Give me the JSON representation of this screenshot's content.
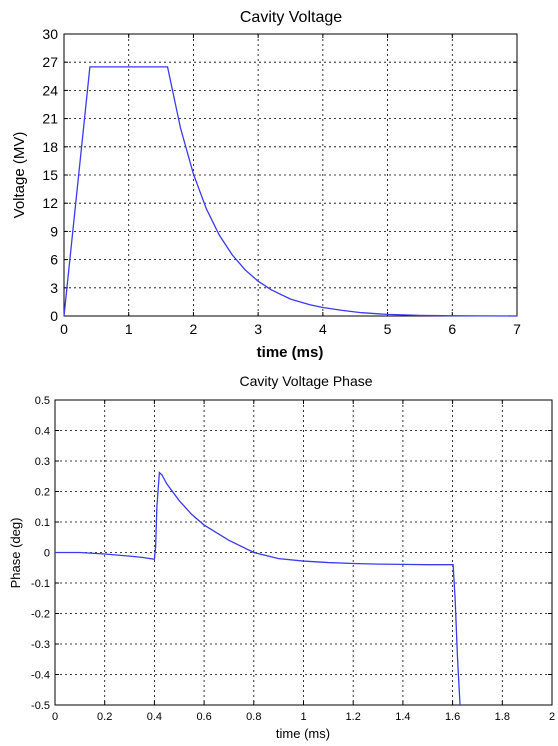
{
  "chart_data": [
    {
      "type": "line",
      "title": "Cavity Voltage",
      "xlabel": "time (ms)",
      "ylabel": "Voltage (MV)",
      "xlim": [
        0,
        7
      ],
      "ylim": [
        0,
        30
      ],
      "xticks": [
        0,
        1,
        2,
        3,
        4,
        5,
        6,
        7
      ],
      "yticks": [
        0,
        3,
        6,
        9,
        12,
        15,
        18,
        21,
        24,
        27,
        30
      ],
      "grid": true,
      "series": [
        {
          "color": "#3a3af0",
          "x": [
            0,
            0.4,
            1.6,
            1.8,
            2.0,
            2.2,
            2.4,
            2.6,
            2.8,
            3.0,
            3.2,
            3.5,
            3.8,
            4.0,
            4.3,
            4.6,
            5.0,
            5.5,
            6.0,
            7.0
          ],
          "y": [
            0,
            26.5,
            26.5,
            20.0,
            15.1,
            11.4,
            8.6,
            6.5,
            4.9,
            3.7,
            2.8,
            1.8,
            1.2,
            0.9,
            0.6,
            0.35,
            0.17,
            0.07,
            0.03,
            0.0
          ]
        }
      ]
    },
    {
      "type": "line",
      "title": "Cavity Voltage Phase",
      "xlabel": "time (ms)",
      "ylabel": "Phase (deg)",
      "xlim": [
        0,
        2
      ],
      "ylim": [
        -0.5,
        0.5
      ],
      "xticks": [
        0,
        0.2,
        0.4,
        0.6,
        0.8,
        1,
        1.2,
        1.4,
        1.6,
        1.8,
        2
      ],
      "yticks": [
        0.5,
        0.4,
        0.3,
        0.2,
        0.1,
        0,
        -0.1,
        -0.2,
        -0.3,
        -0.4,
        -0.5
      ],
      "xtick_labels": [
        "0",
        "0.2",
        "0.4",
        "0.6",
        "0.8",
        "1",
        "1.2",
        "1.4",
        "1.6",
        "1.8",
        "2"
      ],
      "ytick_labels": [
        "0.5",
        "0.4",
        "0.3",
        "0.2",
        "0.1",
        "0",
        "-0.1",
        "-0.2",
        "-0.3",
        "-0.4",
        "-0.5"
      ],
      "grid": true,
      "series": [
        {
          "color": "#3a3af0",
          "x": [
            0,
            0.1,
            0.2,
            0.3,
            0.35,
            0.4,
            0.405,
            0.41,
            0.42,
            0.43,
            0.45,
            0.5,
            0.55,
            0.6,
            0.7,
            0.8,
            0.9,
            1.0,
            1.1,
            1.2,
            1.3,
            1.4,
            1.5,
            1.6,
            1.602,
            1.61,
            1.62,
            1.63
          ],
          "y": [
            0,
            0,
            -0.005,
            -0.012,
            -0.016,
            -0.022,
            0.02,
            0.15,
            0.262,
            0.255,
            0.225,
            0.17,
            0.125,
            0.09,
            0.04,
            0.0,
            -0.02,
            -0.028,
            -0.033,
            -0.036,
            -0.038,
            -0.039,
            -0.04,
            -0.04,
            -0.04,
            -0.15,
            -0.35,
            -0.5
          ]
        }
      ]
    }
  ]
}
